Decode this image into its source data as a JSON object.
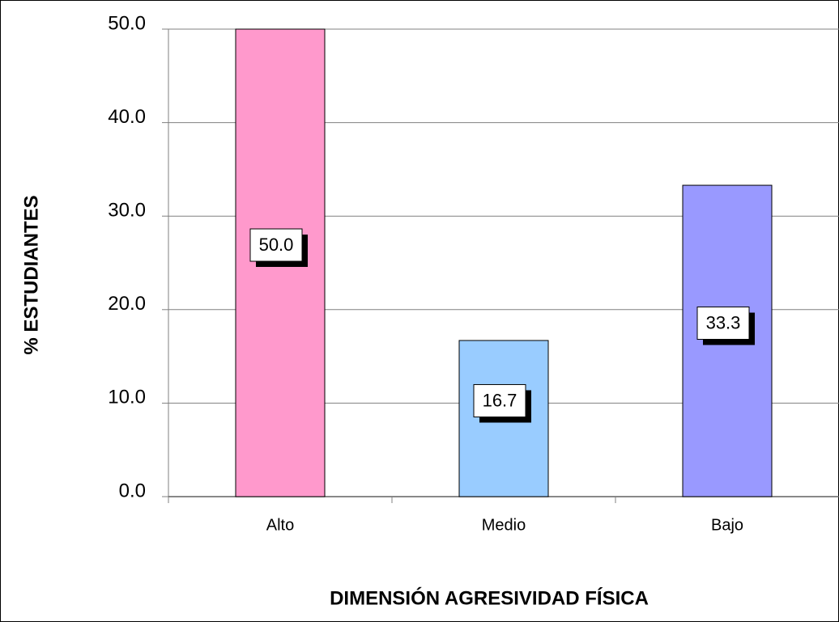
{
  "chart_data": {
    "type": "bar",
    "x_label": "DIMENSIÓN AGRESIVIDAD FÍSICA",
    "y_label": "% ESTUDIANTES",
    "categories": [
      "Alto",
      "Medio",
      "Bajo"
    ],
    "values": [
      50.0,
      16.7,
      33.3
    ],
    "value_labels": [
      "50.0",
      "16.7",
      "33.3"
    ],
    "colors": [
      "#ff99cc",
      "#99ccff",
      "#9999ff"
    ],
    "ylim": [
      0,
      50
    ],
    "yticks": [
      {
        "value": 0,
        "label": "0.0"
      },
      {
        "value": 10,
        "label": "10.0"
      },
      {
        "value": 20,
        "label": "20.0"
      },
      {
        "value": 30,
        "label": "30.0"
      },
      {
        "value": 40,
        "label": "40.0"
      },
      {
        "value": 50,
        "label": "50.0"
      }
    ],
    "grid": true
  }
}
